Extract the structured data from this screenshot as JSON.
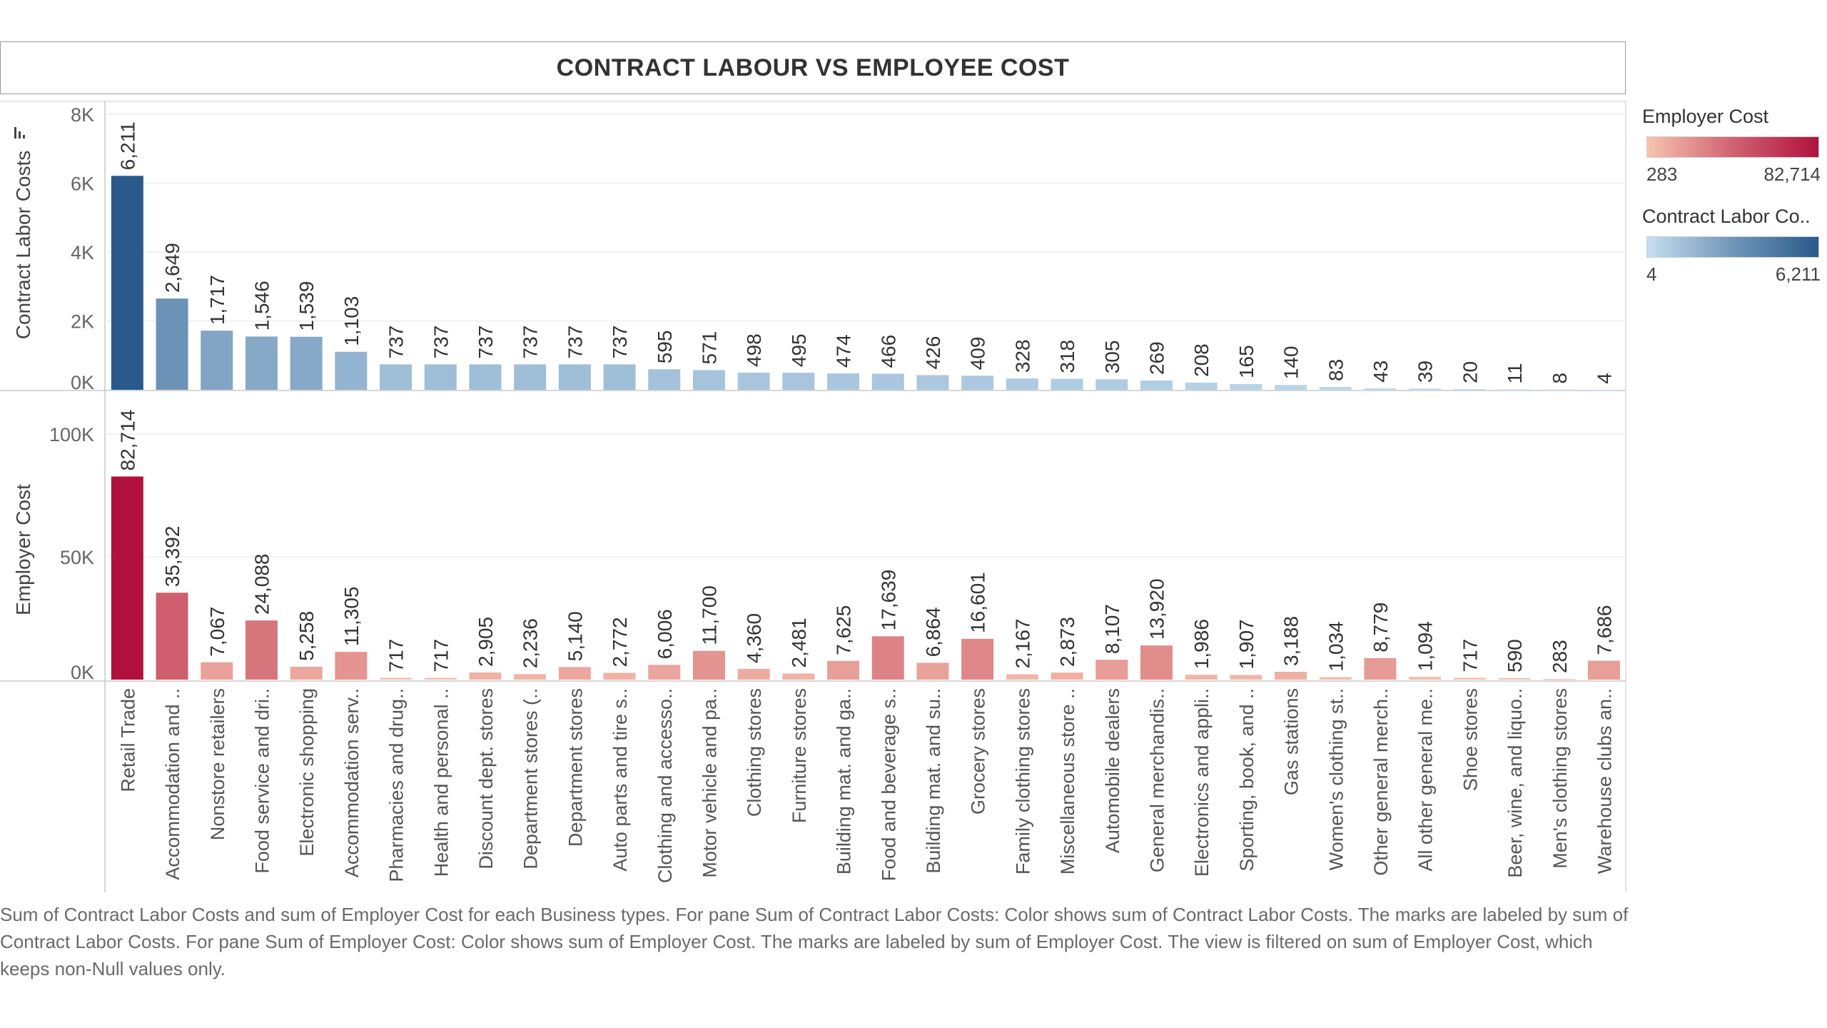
{
  "title": "CONTRACT LABOUR VS EMPLOYEE COST",
  "legends": {
    "employer_cost": {
      "title": "Employer Cost",
      "min": "283",
      "max": "82,714"
    },
    "contract_labor": {
      "title": "Contract Labor Co..",
      "min": "4",
      "max": "6,211"
    }
  },
  "caption": "Sum of Contract Labor Costs and sum of Employer Cost for each Business types.  For pane Sum of Contract Labor Costs:  Color shows sum of Contract Labor Costs.  The marks are labeled by sum of Contract Labor Costs.  For pane Sum of Employer Cost:  Color shows sum of Employer Cost.  The marks are labeled by sum of Employer Cost. The view is filtered on sum of Employer Cost, which keeps non-Null values only.",
  "colors": {
    "contract_low": "#c6dff1",
    "contract_high": "#295a8b",
    "employer_low": "#f7c4b0",
    "employer_high": "#b0123d"
  },
  "chart_data": {
    "type": "bar",
    "categories": [
      "Retail Trade",
      "Accommodation and ..",
      "Nonstore retailers",
      "Food service and dri..",
      "Electronic shopping",
      "Accommodation serv..",
      "Pharmacies and drug..",
      "Health and personal ..",
      "Discount dept. stores",
      "Department stores (..",
      "Department stores",
      "Auto parts and tire s..",
      "Clothing and accesso..",
      "Motor vehicle and pa..",
      "Clothing stores",
      "Furniture stores",
      "Building mat. and ga..",
      "Food and beverage s..",
      "Building mat. and su..",
      "Grocery stores",
      "Family clothing stores",
      "Miscellaneous store ..",
      "Automobile dealers",
      "General merchandis..",
      "Electronics and appli..",
      "Sporting, book, and ..",
      "Gas stations",
      "Women's clothing st..",
      "Other general merch..",
      "All other general me..",
      "Shoe stores",
      "Beer, wine, and liquo..",
      "Men's clothing stores",
      "Warehouse clubs an.."
    ],
    "panes": [
      {
        "ylabel": "Contract Labor Costs",
        "ylim": [
          0,
          8000
        ],
        "ticks": [
          {
            "v": 0,
            "label": "0K"
          },
          {
            "v": 2000,
            "label": "2K"
          },
          {
            "v": 4000,
            "label": "4K"
          },
          {
            "v": 6000,
            "label": "6K"
          },
          {
            "v": 8000,
            "label": "8K"
          }
        ],
        "values": [
          6211,
          2649,
          1717,
          1546,
          1539,
          1103,
          737,
          737,
          737,
          737,
          737,
          737,
          595,
          571,
          498,
          495,
          474,
          466,
          426,
          409,
          328,
          318,
          305,
          269,
          208,
          165,
          140,
          83,
          43,
          39,
          20,
          11,
          8,
          4
        ],
        "labels": [
          "6,211",
          "2,649",
          "1,717",
          "1,546",
          "1,539",
          "1,103",
          "737",
          "737",
          "737",
          "737",
          "737",
          "737",
          "595",
          "571",
          "498",
          "495",
          "474",
          "466",
          "426",
          "409",
          "328",
          "318",
          "305",
          "269",
          "208",
          "165",
          "140",
          "83",
          "43",
          "39",
          "20",
          "11",
          "8",
          "4"
        ]
      },
      {
        "ylabel": "Employer Cost",
        "ylim": [
          0,
          100000
        ],
        "ticks": [
          {
            "v": 0,
            "label": "0K"
          },
          {
            "v": 50000,
            "label": "50K"
          },
          {
            "v": 100000,
            "label": "100K"
          }
        ],
        "values": [
          82714,
          35392,
          7067,
          24088,
          5258,
          11305,
          717,
          717,
          2905,
          2236,
          5140,
          2772,
          6006,
          11700,
          4360,
          2481,
          7625,
          17639,
          6864,
          16601,
          2167,
          2873,
          8107,
          13920,
          1986,
          1907,
          3188,
          1034,
          8779,
          1094,
          717,
          590,
          283,
          7686
        ],
        "labels": [
          "82,714",
          "35,392",
          "7,067",
          "24,088",
          "5,258",
          "11,305",
          "717",
          "717",
          "2,905",
          "2,236",
          "5,140",
          "2,772",
          "6,006",
          "11,700",
          "4,360",
          "2,481",
          "7,625",
          "17,639",
          "6,864",
          "16,601",
          "2,167",
          "2,873",
          "8,107",
          "13,920",
          "1,986",
          "1,907",
          "3,188",
          "1,034",
          "8,779",
          "1,094",
          "717",
          "590",
          "283",
          "7,686"
        ]
      }
    ]
  }
}
